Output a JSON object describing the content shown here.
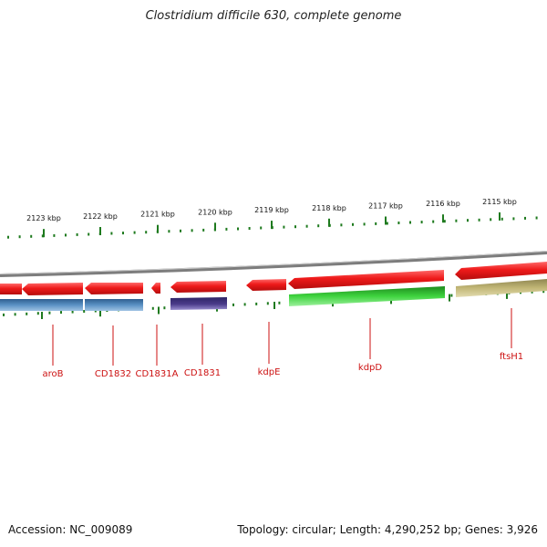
{
  "title": "Clostridium difficile 630, complete genome",
  "accession_label": "Accession: NC_009089",
  "summary_label": "Topology: circular; Length: 4,290,252 bp; Genes: 3,926",
  "ruler_labels": [
    "2123 kbp",
    "2122 kbp",
    "2121 kbp",
    "2120 kbp",
    "2119 kbp",
    "2118 kbp",
    "2117 kbp",
    "2116 kbp",
    "2115 kbp"
  ],
  "genes": [
    {
      "label": "aroB"
    },
    {
      "label": "CD1832"
    },
    {
      "label": "CD1831A"
    },
    {
      "label": "CD1831"
    },
    {
      "label": "kdpE"
    },
    {
      "label": "kdpD"
    },
    {
      "label": "ftsH1"
    }
  ],
  "colors": {
    "cds": "#e8141a",
    "backbone": "#8a8a8a",
    "tick": "#1e7a1e",
    "label": "#cc1111",
    "track_blue": "#4f86b8",
    "track_purple": "#4b3c8a",
    "track_green": "#33c233",
    "track_khaki": "#b8ad6a"
  }
}
